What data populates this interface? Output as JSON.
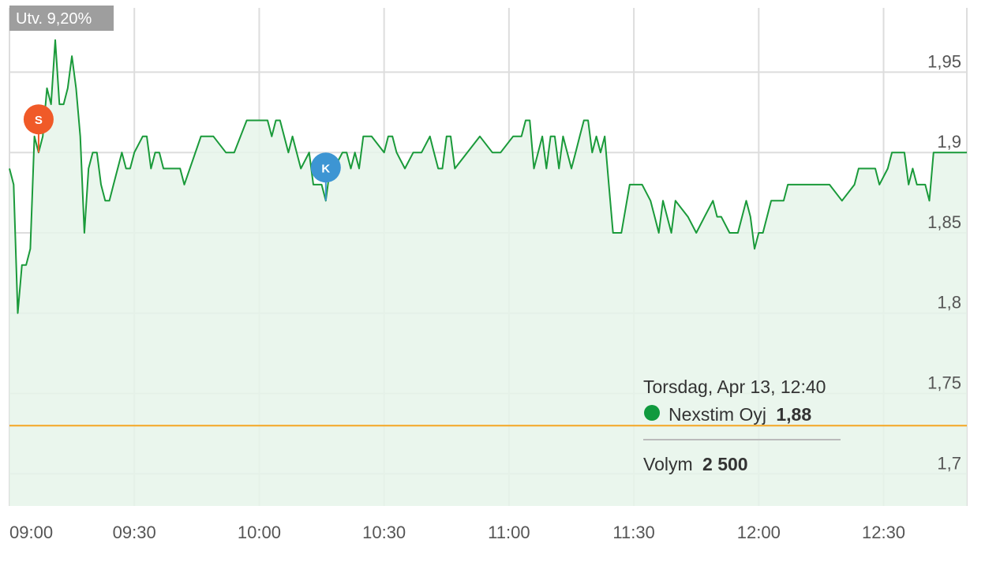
{
  "change_badge": {
    "label": "Utv. 9,20%"
  },
  "tooltip": {
    "date": "Torsdag, Apr 13, 12:40",
    "series_name": "Nexstim Oyj",
    "series_value": "1,88",
    "volume_label": "Volym",
    "volume_value": "2 500"
  },
  "markers": [
    {
      "letter": "S",
      "time": "09:07",
      "color": "#f05a28"
    },
    {
      "letter": "K",
      "time": "10:16",
      "color": "#3d95d3"
    }
  ],
  "colors": {
    "line": "#1a9a3a",
    "area": "#e6f4ea",
    "grid": "#dddddd",
    "reference_line": "#f5a623",
    "badge": "#9e9e9e",
    "legend_dot": "#109a3e"
  },
  "chart_data": {
    "type": "area",
    "title": "",
    "xlabel": "",
    "ylabel": "",
    "x_start": "09:00",
    "x_end": "12:50",
    "xlim": [
      "09:00",
      "12:50"
    ],
    "ylim": [
      1.68,
      1.99
    ],
    "x_ticks": [
      "09:00",
      "09:30",
      "10:00",
      "10:30",
      "11:00",
      "11:30",
      "12:00",
      "12:30"
    ],
    "y_ticks": [
      {
        "value": 1.95,
        "label": "1,95"
      },
      {
        "value": 1.9,
        "label": "1,9"
      },
      {
        "value": 1.85,
        "label": "1,85"
      },
      {
        "value": 1.8,
        "label": "1,8"
      },
      {
        "value": 1.75,
        "label": "1,75"
      },
      {
        "value": 1.7,
        "label": "1,7"
      }
    ],
    "reference_line": {
      "value": 1.73
    },
    "grid": true,
    "series": [
      {
        "name": "Nexstim Oyj",
        "points": [
          [
            "09:00",
            1.89
          ],
          [
            "09:01",
            1.88
          ],
          [
            "09:02",
            1.8
          ],
          [
            "09:03",
            1.83
          ],
          [
            "09:04",
            1.83
          ],
          [
            "09:05",
            1.84
          ],
          [
            "09:06",
            1.91
          ],
          [
            "09:07",
            1.9
          ],
          [
            "09:08",
            1.91
          ],
          [
            "09:09",
            1.94
          ],
          [
            "09:10",
            1.93
          ],
          [
            "09:11",
            1.97
          ],
          [
            "09:12",
            1.93
          ],
          [
            "09:13",
            1.93
          ],
          [
            "09:14",
            1.94
          ],
          [
            "09:15",
            1.96
          ],
          [
            "09:16",
            1.94
          ],
          [
            "09:17",
            1.91
          ],
          [
            "09:18",
            1.85
          ],
          [
            "09:19",
            1.89
          ],
          [
            "09:20",
            1.9
          ],
          [
            "09:21",
            1.9
          ],
          [
            "09:22",
            1.88
          ],
          [
            "09:23",
            1.87
          ],
          [
            "09:24",
            1.87
          ],
          [
            "09:25",
            1.88
          ],
          [
            "09:27",
            1.9
          ],
          [
            "09:28",
            1.89
          ],
          [
            "09:29",
            1.89
          ],
          [
            "09:30",
            1.9
          ],
          [
            "09:32",
            1.91
          ],
          [
            "09:33",
            1.91
          ],
          [
            "09:34",
            1.89
          ],
          [
            "09:35",
            1.9
          ],
          [
            "09:36",
            1.9
          ],
          [
            "09:37",
            1.89
          ],
          [
            "09:41",
            1.89
          ],
          [
            "09:42",
            1.88
          ],
          [
            "09:46",
            1.91
          ],
          [
            "09:49",
            1.91
          ],
          [
            "09:52",
            1.9
          ],
          [
            "09:54",
            1.9
          ],
          [
            "09:57",
            1.92
          ],
          [
            "10:02",
            1.92
          ],
          [
            "10:03",
            1.91
          ],
          [
            "10:04",
            1.92
          ],
          [
            "10:05",
            1.92
          ],
          [
            "10:07",
            1.9
          ],
          [
            "10:08",
            1.91
          ],
          [
            "10:09",
            1.9
          ],
          [
            "10:10",
            1.89
          ],
          [
            "10:12",
            1.9
          ],
          [
            "10:13",
            1.88
          ],
          [
            "10:15",
            1.88
          ],
          [
            "10:16",
            1.87
          ],
          [
            "10:17",
            1.89
          ],
          [
            "10:18",
            1.89
          ],
          [
            "10:20",
            1.9
          ],
          [
            "10:21",
            1.9
          ],
          [
            "10:22",
            1.89
          ],
          [
            "10:23",
            1.9
          ],
          [
            "10:24",
            1.89
          ],
          [
            "10:25",
            1.91
          ],
          [
            "10:27",
            1.91
          ],
          [
            "10:30",
            1.9
          ],
          [
            "10:31",
            1.91
          ],
          [
            "10:32",
            1.91
          ],
          [
            "10:33",
            1.9
          ],
          [
            "10:35",
            1.89
          ],
          [
            "10:37",
            1.9
          ],
          [
            "10:39",
            1.9
          ],
          [
            "10:41",
            1.91
          ],
          [
            "10:42",
            1.9
          ],
          [
            "10:43",
            1.89
          ],
          [
            "10:44",
            1.89
          ],
          [
            "10:45",
            1.91
          ],
          [
            "10:46",
            1.91
          ],
          [
            "10:47",
            1.89
          ],
          [
            "10:53",
            1.91
          ],
          [
            "10:56",
            1.9
          ],
          [
            "10:58",
            1.9
          ],
          [
            "11:01",
            1.91
          ],
          [
            "11:03",
            1.91
          ],
          [
            "11:04",
            1.92
          ],
          [
            "11:05",
            1.92
          ],
          [
            "11:06",
            1.89
          ],
          [
            "11:07",
            1.9
          ],
          [
            "11:08",
            1.91
          ],
          [
            "11:09",
            1.89
          ],
          [
            "11:10",
            1.91
          ],
          [
            "11:11",
            1.91
          ],
          [
            "11:12",
            1.89
          ],
          [
            "11:13",
            1.91
          ],
          [
            "11:14",
            1.9
          ],
          [
            "11:15",
            1.89
          ],
          [
            "11:16",
            1.9
          ],
          [
            "11:17",
            1.91
          ],
          [
            "11:18",
            1.92
          ],
          [
            "11:19",
            1.92
          ],
          [
            "11:20",
            1.9
          ],
          [
            "11:21",
            1.91
          ],
          [
            "11:22",
            1.9
          ],
          [
            "11:23",
            1.91
          ],
          [
            "11:24",
            1.88
          ],
          [
            "11:25",
            1.85
          ],
          [
            "11:26",
            1.85
          ],
          [
            "11:27",
            1.85
          ],
          [
            "11:29",
            1.88
          ],
          [
            "11:32",
            1.88
          ],
          [
            "11:34",
            1.87
          ],
          [
            "11:35",
            1.86
          ],
          [
            "11:36",
            1.85
          ],
          [
            "11:37",
            1.87
          ],
          [
            "11:38",
            1.86
          ],
          [
            "11:39",
            1.85
          ],
          [
            "11:40",
            1.87
          ],
          [
            "11:43",
            1.86
          ],
          [
            "11:45",
            1.85
          ],
          [
            "11:47",
            1.86
          ],
          [
            "11:49",
            1.87
          ],
          [
            "11:50",
            1.86
          ],
          [
            "11:51",
            1.86
          ],
          [
            "11:53",
            1.85
          ],
          [
            "11:55",
            1.85
          ],
          [
            "11:56",
            1.86
          ],
          [
            "11:57",
            1.87
          ],
          [
            "11:58",
            1.86
          ],
          [
            "11:59",
            1.84
          ],
          [
            "12:00",
            1.85
          ],
          [
            "12:01",
            1.85
          ],
          [
            "12:03",
            1.87
          ],
          [
            "12:06",
            1.87
          ],
          [
            "12:07",
            1.88
          ],
          [
            "12:11",
            1.88
          ],
          [
            "12:13",
            1.88
          ],
          [
            "12:16",
            1.88
          ],
          [
            "12:17",
            1.88
          ],
          [
            "12:20",
            1.87
          ],
          [
            "12:23",
            1.88
          ],
          [
            "12:24",
            1.89
          ],
          [
            "12:28",
            1.89
          ],
          [
            "12:29",
            1.88
          ],
          [
            "12:31",
            1.89
          ],
          [
            "12:32",
            1.9
          ],
          [
            "12:35",
            1.9
          ],
          [
            "12:36",
            1.88
          ],
          [
            "12:37",
            1.89
          ],
          [
            "12:38",
            1.88
          ],
          [
            "12:40",
            1.88
          ],
          [
            "12:41",
            1.87
          ],
          [
            "12:42",
            1.9
          ],
          [
            "12:50",
            1.9
          ]
        ]
      }
    ]
  }
}
